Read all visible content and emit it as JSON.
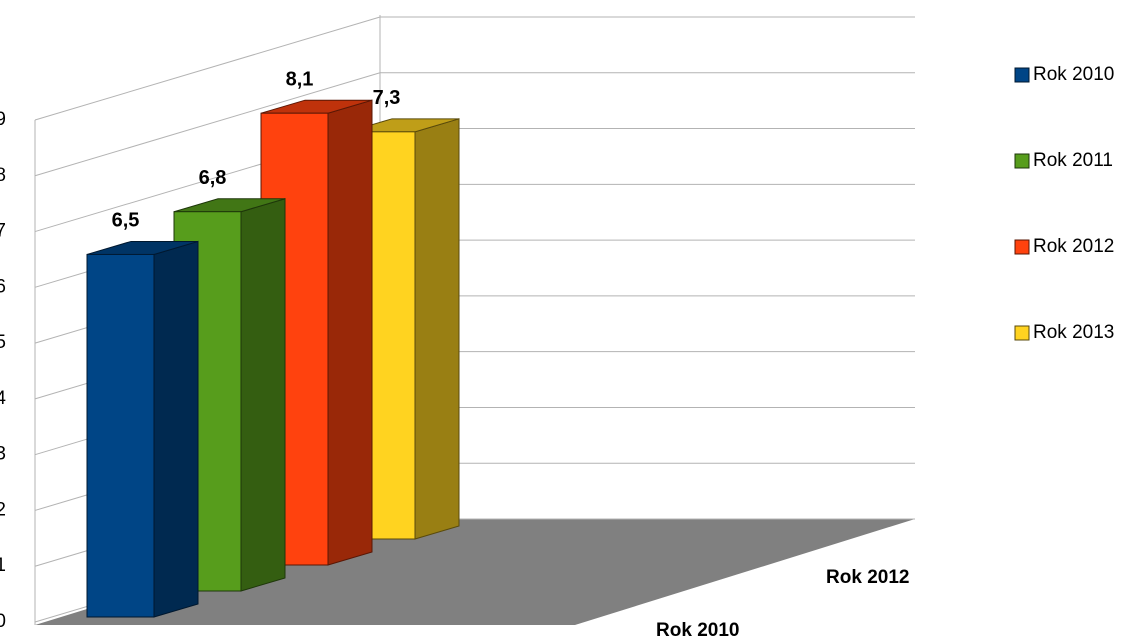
{
  "chart_data": {
    "type": "bar3d",
    "categories": [
      null
    ],
    "series": [
      {
        "name": "Rok 2010",
        "color": "#004586",
        "values": [
          6.5
        ],
        "value_labels": [
          "6,5"
        ]
      },
      {
        "name": "Rok 2011",
        "color": "#579d1c",
        "values": [
          6.8
        ],
        "value_labels": [
          "6,8"
        ]
      },
      {
        "name": "Rok 2012",
        "color": "#ff420e",
        "values": [
          8.1
        ],
        "value_labels": [
          "8,1"
        ]
      },
      {
        "name": "Rok 2013",
        "color": "#ffd320",
        "values": [
          7.3
        ],
        "value_labels": [
          "7,3"
        ]
      }
    ],
    "depth_labels": [
      "Rok 2010",
      null,
      "Rok 2012",
      null
    ],
    "ylim": [
      0,
      9
    ],
    "yticks": [
      0,
      1,
      2,
      3,
      4,
      5,
      6,
      7,
      8,
      9
    ],
    "grid": true,
    "legend": "right"
  }
}
